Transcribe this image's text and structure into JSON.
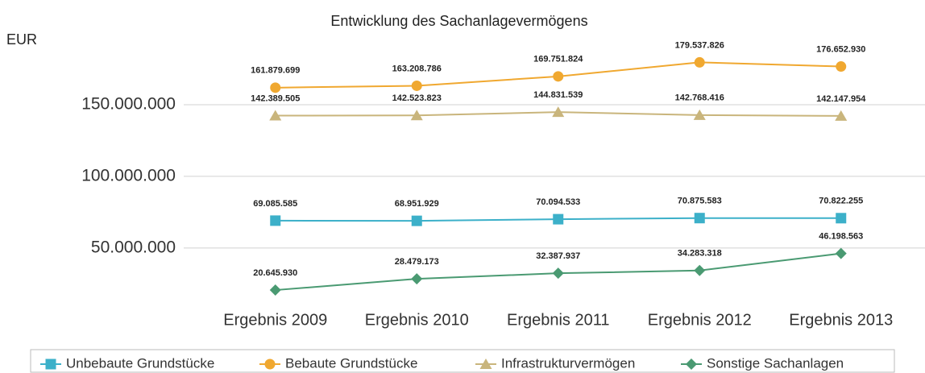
{
  "chart_data": {
    "type": "line",
    "title": "Entwicklung des Sachanlagevermögens",
    "y_label": "EUR",
    "categories": [
      "Ergebnis 2009",
      "Ergebnis 2010",
      "Ergebnis 2011",
      "Ergebnis 2012",
      "Ergebnis 2013"
    ],
    "ylim": [
      10000000,
      190000000
    ],
    "yticks": [
      {
        "value": 50000000,
        "label": "50.000.000"
      },
      {
        "value": 100000000,
        "label": "100.000.000"
      },
      {
        "value": 150000000,
        "label": "150.000.000"
      }
    ],
    "grid": true,
    "legend": "bottom",
    "series": [
      {
        "name": "Unbebaute Grundstücke",
        "color": "#3cb0c9",
        "marker": "square",
        "values": [
          69085585,
          68951929,
          70094533,
          70875583,
          70822255
        ],
        "value_labels": [
          "69.085.585",
          "68.951.929",
          "70.094.533",
          "70.875.583",
          "70.822.255"
        ]
      },
      {
        "name": "Bebaute Grundstücke",
        "color": "#f0a830",
        "marker": "circle",
        "values": [
          161879699,
          163208786,
          169751824,
          179537826,
          176652930
        ],
        "value_labels": [
          "161.879.699",
          "163.208.786",
          "169.751.824",
          "179.537.826",
          "176.652.930"
        ]
      },
      {
        "name": "Infrastrukturvermögen",
        "color": "#c9b57c",
        "marker": "triangle",
        "values": [
          142389505,
          142523823,
          144831539,
          142768416,
          142147954
        ],
        "value_labels": [
          "142.389.505",
          "142.523.823",
          "144.831.539",
          "142.768.416",
          "142.147.954"
        ]
      },
      {
        "name": "Sonstige Sachanlagen",
        "color": "#4a9a72",
        "marker": "diamond",
        "values": [
          20645930,
          28479173,
          32387937,
          34283318,
          46198563
        ],
        "value_labels": [
          "20.645.930",
          "28.479.173",
          "32.387.937",
          "34.283.318",
          "46.198.563"
        ]
      }
    ]
  }
}
